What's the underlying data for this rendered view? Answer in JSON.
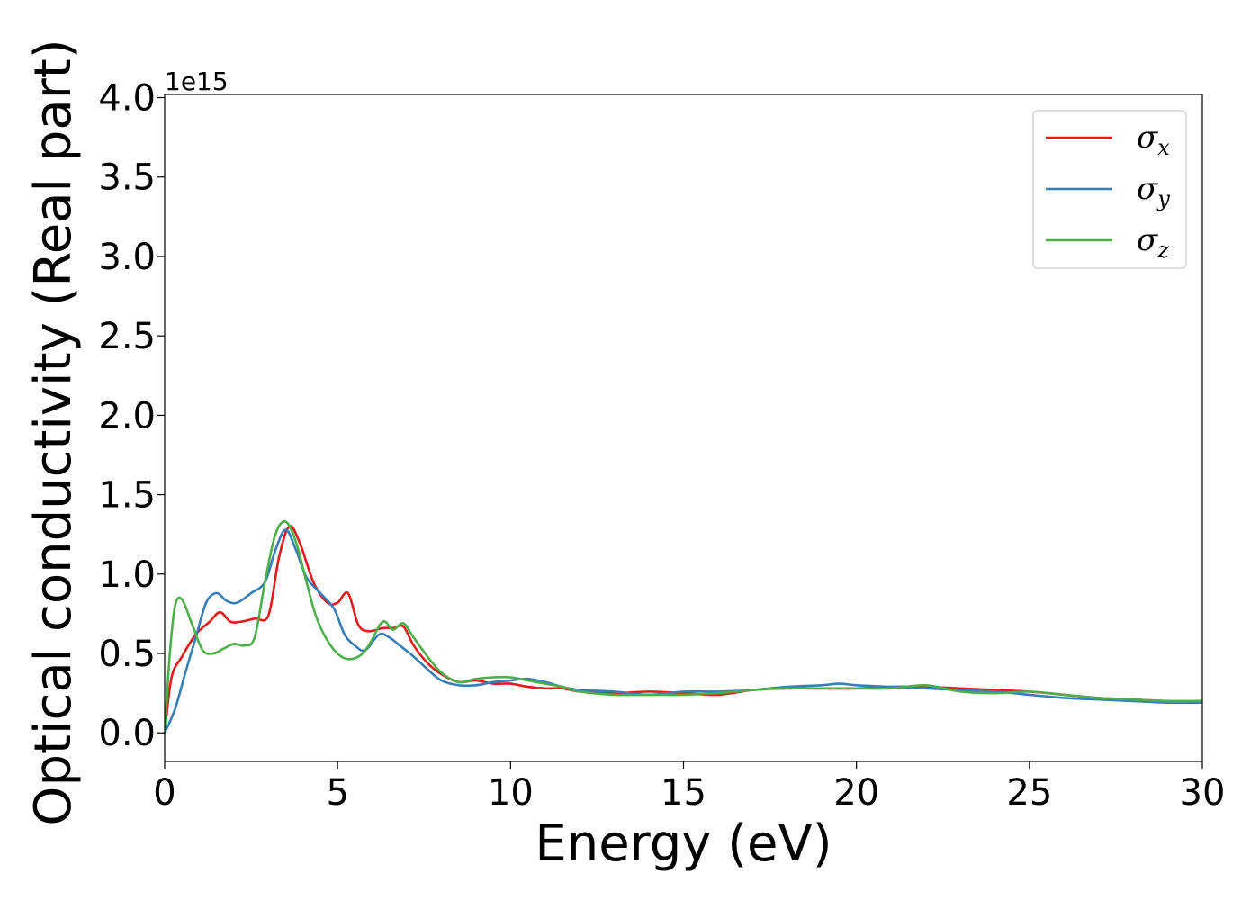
{
  "chart_data": {
    "type": "line",
    "title": "",
    "xlabel": "Energy (eV)",
    "ylabel": "Optical conductivity (Real part)",
    "y_offset_label": "1e15",
    "y_scale": 1000000000000000.0,
    "xlim": [
      0,
      30
    ],
    "ylim": [
      -0.18,
      4.02
    ],
    "x_ticks": [
      0,
      5,
      10,
      15,
      20,
      25,
      30
    ],
    "x_tick_labels": [
      "0",
      "5",
      "10",
      "15",
      "20",
      "25",
      "30"
    ],
    "y_ticks": [
      0.0,
      0.5,
      1.0,
      1.5,
      2.0,
      2.5,
      3.0,
      3.5,
      4.0
    ],
    "y_tick_labels": [
      "0.0",
      "0.5",
      "1.0",
      "1.5",
      "2.0",
      "2.5",
      "3.0",
      "3.5",
      "4.0"
    ],
    "grid": false,
    "legend_position": "top-right",
    "series": [
      {
        "name": "σx",
        "symbol": "σ",
        "subscript": "x",
        "color": "#e41a1c",
        "x": [
          0,
          0.2,
          0.5,
          0.9,
          1.3,
          1.6,
          1.9,
          2.2,
          2.6,
          3.0,
          3.3,
          3.6,
          3.9,
          4.3,
          4.7,
          5.0,
          5.3,
          5.6,
          5.9,
          6.3,
          6.6,
          6.9,
          7.2,
          7.6,
          8.0,
          8.5,
          9.0,
          9.5,
          10.0,
          10.5,
          11.0,
          11.5,
          12.0,
          13.0,
          14.0,
          15.0,
          16.0,
          17.0,
          18.0,
          19.0,
          20.0,
          21.0,
          22.0,
          23.0,
          24.0,
          25.0,
          26.0,
          27.0,
          28.0,
          29.0,
          30.0
        ],
        "y": [
          0.0,
          0.35,
          0.48,
          0.62,
          0.7,
          0.76,
          0.7,
          0.7,
          0.72,
          0.74,
          1.1,
          1.3,
          1.2,
          0.95,
          0.82,
          0.82,
          0.88,
          0.68,
          0.64,
          0.66,
          0.66,
          0.67,
          0.55,
          0.44,
          0.37,
          0.32,
          0.33,
          0.31,
          0.31,
          0.29,
          0.28,
          0.28,
          0.26,
          0.25,
          0.26,
          0.25,
          0.24,
          0.27,
          0.28,
          0.28,
          0.28,
          0.29,
          0.29,
          0.28,
          0.27,
          0.26,
          0.24,
          0.22,
          0.21,
          0.2,
          0.2
        ]
      },
      {
        "name": "σy",
        "symbol": "σ",
        "subscript": "y",
        "color": "#377eb8",
        "x": [
          0,
          0.3,
          0.6,
          0.9,
          1.2,
          1.5,
          1.8,
          2.1,
          2.5,
          2.9,
          3.2,
          3.5,
          3.8,
          4.1,
          4.5,
          4.9,
          5.2,
          5.5,
          5.8,
          6.2,
          6.5,
          6.8,
          7.2,
          7.6,
          8.0,
          8.5,
          9.0,
          9.5,
          10.0,
          10.5,
          11.0,
          11.5,
          12.0,
          13.0,
          14.0,
          15.0,
          16.0,
          17.0,
          18.0,
          19.0,
          19.5,
          20.0,
          21.0,
          22.0,
          23.0,
          24.0,
          25.0,
          26.0,
          27.0,
          28.0,
          29.0,
          30.0
        ],
        "y": [
          0.0,
          0.15,
          0.38,
          0.6,
          0.82,
          0.88,
          0.83,
          0.82,
          0.88,
          0.95,
          1.15,
          1.28,
          1.15,
          0.98,
          0.88,
          0.78,
          0.62,
          0.55,
          0.52,
          0.62,
          0.6,
          0.55,
          0.48,
          0.4,
          0.33,
          0.3,
          0.3,
          0.32,
          0.33,
          0.34,
          0.32,
          0.29,
          0.27,
          0.26,
          0.24,
          0.26,
          0.26,
          0.27,
          0.29,
          0.3,
          0.31,
          0.3,
          0.29,
          0.28,
          0.27,
          0.26,
          0.24,
          0.22,
          0.21,
          0.2,
          0.19,
          0.19
        ]
      },
      {
        "name": "σz",
        "symbol": "σ",
        "subscript": "z",
        "color": "#4daf4a",
        "x": [
          0,
          0.15,
          0.3,
          0.5,
          0.8,
          1.1,
          1.4,
          1.7,
          2.0,
          2.3,
          2.6,
          2.9,
          3.2,
          3.5,
          3.8,
          4.1,
          4.4,
          4.8,
          5.2,
          5.6,
          5.9,
          6.3,
          6.6,
          6.9,
          7.2,
          7.6,
          8.0,
          8.5,
          9.0,
          9.5,
          10.0,
          10.5,
          11.0,
          11.5,
          12.0,
          13.0,
          14.0,
          15.0,
          16.0,
          17.0,
          18.0,
          19.0,
          20.0,
          21.0,
          22.0,
          23.0,
          24.0,
          25.0,
          26.0,
          27.0,
          28.0,
          29.0,
          30.0
        ],
        "y": [
          0.0,
          0.5,
          0.8,
          0.84,
          0.68,
          0.52,
          0.5,
          0.53,
          0.56,
          0.55,
          0.6,
          0.95,
          1.25,
          1.33,
          1.2,
          0.95,
          0.72,
          0.55,
          0.47,
          0.48,
          0.55,
          0.7,
          0.65,
          0.69,
          0.6,
          0.48,
          0.38,
          0.32,
          0.34,
          0.35,
          0.35,
          0.33,
          0.31,
          0.29,
          0.26,
          0.24,
          0.24,
          0.24,
          0.25,
          0.27,
          0.28,
          0.28,
          0.28,
          0.28,
          0.3,
          0.26,
          0.25,
          0.26,
          0.24,
          0.22,
          0.21,
          0.2,
          0.2
        ]
      }
    ]
  }
}
